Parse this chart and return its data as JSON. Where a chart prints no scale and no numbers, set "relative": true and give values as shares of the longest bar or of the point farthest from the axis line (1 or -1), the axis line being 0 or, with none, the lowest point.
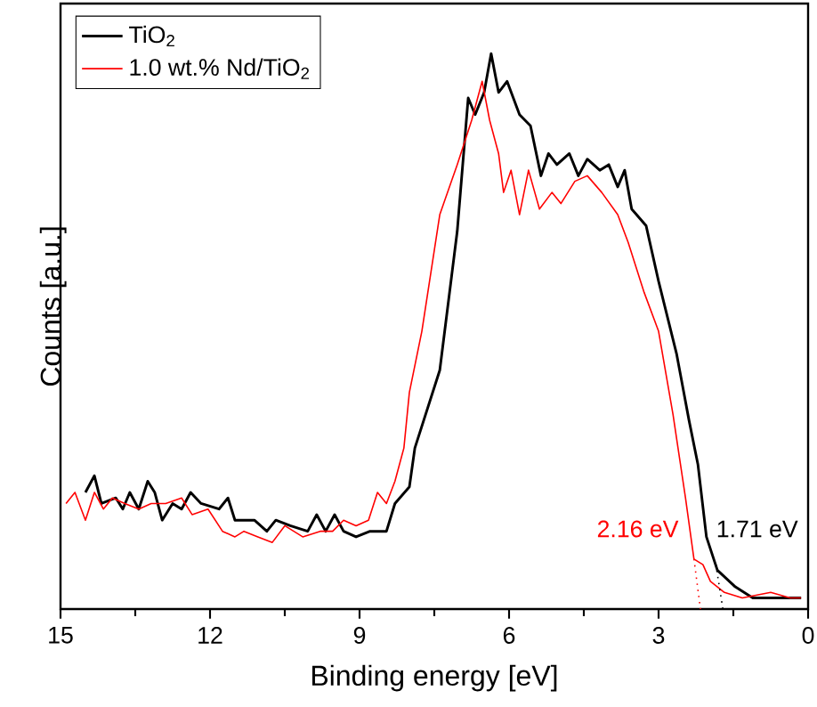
{
  "chart_data": {
    "type": "line",
    "xlabel": "Binding energy [eV]",
    "ylabel": "Counts [a.u.]",
    "relative": true,
    "xlim": [
      15,
      0
    ],
    "xticks": [
      15,
      12,
      9,
      6,
      3,
      0
    ],
    "legend": "top left",
    "grid": false,
    "marker": "none",
    "line_style": "solid",
    "tick_labels": "x",
    "series": [
      {
        "name": "TiO$_{2}$",
        "color": "#000000",
        "x": [
          14.5,
          14.32,
          14.18,
          13.89,
          13.75,
          13.61,
          13.43,
          13.25,
          13.11,
          12.96,
          12.75,
          12.57,
          12.39,
          12.18,
          11.82,
          11.64,
          11.5,
          11.11,
          10.86,
          10.68,
          10.39,
          10.04,
          9.86,
          9.68,
          9.5,
          9.32,
          9.07,
          8.79,
          8.46,
          8.29,
          8.0,
          7.89,
          7.39,
          7.04,
          6.82,
          6.68,
          6.5,
          6.36,
          6.21,
          6.04,
          5.79,
          5.57,
          5.36,
          5.21,
          5.04,
          4.79,
          4.61,
          4.43,
          4.18,
          4.0,
          3.82,
          3.68,
          3.54,
          3.25,
          3.0,
          2.64,
          2.39,
          2.21,
          2.04,
          1.82,
          1.46,
          1.11,
          0.61,
          0.14
        ],
        "values": [
          0.21,
          0.24,
          0.19,
          0.2,
          0.18,
          0.21,
          0.18,
          0.23,
          0.21,
          0.16,
          0.19,
          0.18,
          0.21,
          0.19,
          0.18,
          0.2,
          0.16,
          0.16,
          0.14,
          0.16,
          0.15,
          0.14,
          0.17,
          0.14,
          0.17,
          0.14,
          0.13,
          0.14,
          0.14,
          0.19,
          0.22,
          0.29,
          0.43,
          0.68,
          0.92,
          0.89,
          0.93,
          1.0,
          0.93,
          0.95,
          0.89,
          0.87,
          0.78,
          0.82,
          0.8,
          0.82,
          0.78,
          0.81,
          0.79,
          0.8,
          0.76,
          0.79,
          0.72,
          0.69,
          0.59,
          0.46,
          0.34,
          0.26,
          0.13,
          0.07,
          0.04,
          0.02,
          0.02,
          0.02
        ]
      },
      {
        "name": "1.0 wt.% Nd/TiO$_{2}$",
        "color": "#ff0000",
        "x": [
          14.89,
          14.71,
          14.5,
          14.32,
          14.14,
          13.96,
          13.71,
          13.43,
          13.18,
          12.89,
          12.57,
          12.36,
          12.04,
          11.75,
          11.5,
          11.32,
          11.04,
          10.75,
          10.5,
          10.14,
          9.79,
          9.54,
          9.32,
          9.07,
          8.82,
          8.64,
          8.46,
          8.29,
          8.11,
          8.0,
          7.75,
          7.39,
          7.04,
          6.75,
          6.54,
          6.39,
          6.21,
          6.11,
          5.96,
          5.79,
          5.61,
          5.39,
          5.14,
          4.96,
          4.68,
          4.43,
          4.14,
          3.82,
          3.61,
          3.29,
          3.0,
          2.71,
          2.46,
          2.29,
          2.11,
          1.96,
          1.68,
          1.32,
          0.75,
          0.36,
          0.14
        ],
        "values": [
          0.19,
          0.21,
          0.16,
          0.21,
          0.18,
          0.2,
          0.19,
          0.18,
          0.19,
          0.19,
          0.2,
          0.17,
          0.18,
          0.14,
          0.13,
          0.14,
          0.13,
          0.12,
          0.15,
          0.13,
          0.14,
          0.14,
          0.16,
          0.15,
          0.16,
          0.21,
          0.19,
          0.23,
          0.29,
          0.39,
          0.5,
          0.71,
          0.8,
          0.88,
          0.95,
          0.88,
          0.82,
          0.75,
          0.79,
          0.71,
          0.79,
          0.72,
          0.75,
          0.73,
          0.77,
          0.78,
          0.75,
          0.71,
          0.66,
          0.57,
          0.5,
          0.35,
          0.2,
          0.09,
          0.08,
          0.05,
          0.03,
          0.02,
          0.03,
          0.02,
          0.02
        ]
      },
      {
        "type": "line",
        "color": "#ff0000",
        "line_style": "dotted",
        "x": [
          2.29,
          2.16
        ],
        "values": [
          0.09,
          0.0
        ]
      },
      {
        "type": "line",
        "color": "#000000",
        "line_style": "dotted",
        "x": [
          1.85,
          1.71
        ],
        "values": [
          0.08,
          0.0
        ]
      }
    ],
    "annotations": [
      "2.16 eV",
      "1.71 eV"
    ]
  }
}
